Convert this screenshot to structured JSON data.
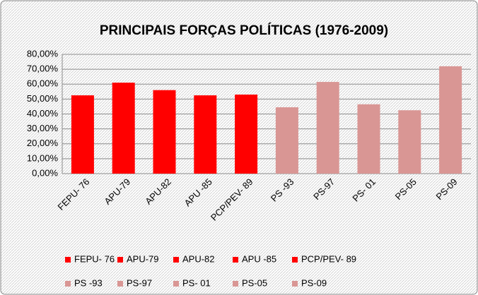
{
  "chart_data": {
    "type": "bar",
    "title": "PRINCIPAIS FORÇAS POLÍTICAS (1976-2009)",
    "categories": [
      "FEPU- 76",
      "APU-79",
      "APU-82",
      "APU -85",
      "PCP/PEV- 89",
      "PS -93",
      "PS-97",
      "PS- 01",
      "PS-05",
      "PS-09"
    ],
    "values": [
      52.5,
      61,
      56,
      52.5,
      53,
      44.5,
      61.5,
      46.5,
      42.5,
      72
    ],
    "colors": [
      "#ff0000",
      "#ff0000",
      "#ff0000",
      "#ff0000",
      "#ff0000",
      "#d99694",
      "#d99694",
      "#d99694",
      "#d99694",
      "#d99694"
    ],
    "ylim": [
      0,
      80
    ],
    "yticks": [
      {
        "value": 0,
        "label": "0,00%"
      },
      {
        "value": 10,
        "label": "10,00%"
      },
      {
        "value": 20,
        "label": "20,00%"
      },
      {
        "value": 30,
        "label": "30,00%"
      },
      {
        "value": 40,
        "label": "40,00%"
      },
      {
        "value": 50,
        "label": "50,00%"
      },
      {
        "value": 60,
        "label": "60,00%"
      },
      {
        "value": 70,
        "label": "70,00%"
      },
      {
        "value": 80,
        "label": "80,00%"
      }
    ],
    "grid": true
  }
}
